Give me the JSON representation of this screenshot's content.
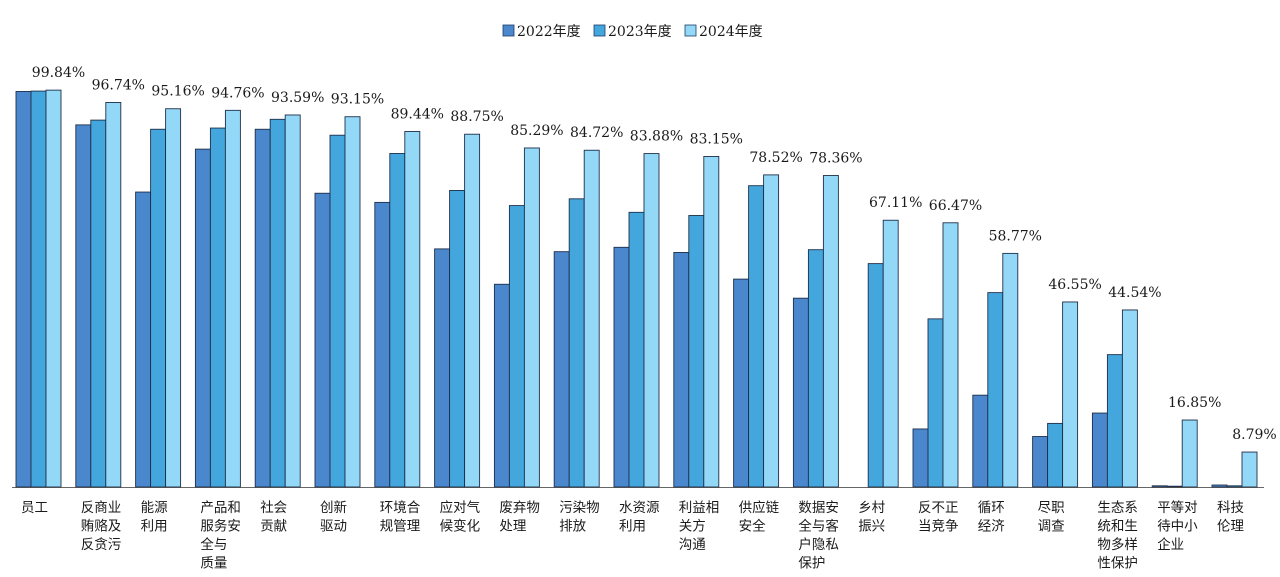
{
  "chart_data": {
    "type": "bar",
    "title": "",
    "xlabel": "",
    "ylabel": "",
    "ylim": [
      0,
      100
    ],
    "grid": false,
    "legend_placement": "top-center",
    "categories": [
      "员工",
      "反商业贿赂及反贪污",
      "能源利用",
      "产品和服务安全与质量",
      "社会贡献",
      "创新驱动",
      "环境合规管理",
      "应对气候变化",
      "废弃物处理",
      "污染物排放",
      "水资源利用",
      "利益相关方沟通",
      "供应链安全",
      "数据安全与客户隐私保护",
      "乡村振兴",
      "反不正当竞争",
      "循环经济",
      "尽职调查",
      "生态系统和生物多样性保护",
      "平等对待中小企业",
      "科技伦理"
    ],
    "category_lines": [
      [
        "员工"
      ],
      [
        "反商业",
        "贿赂及",
        "反贪污"
      ],
      [
        "能源",
        "利用"
      ],
      [
        "产品和",
        "服务安",
        "全与",
        "质量"
      ],
      [
        "社会",
        "贡献"
      ],
      [
        "创新",
        "驱动"
      ],
      [
        "环境合",
        "规管理"
      ],
      [
        "应对气",
        "候变化"
      ],
      [
        "废弃物",
        "处理"
      ],
      [
        "污染物",
        "排放"
      ],
      [
        "水资源",
        "利用"
      ],
      [
        "利益相",
        "关方",
        "沟通"
      ],
      [
        "供应链",
        "安全"
      ],
      [
        "数据安",
        "全与客",
        "户隐私",
        "保护"
      ],
      [
        "乡村",
        "振兴"
      ],
      [
        "反不正",
        "当竞争"
      ],
      [
        "循环",
        "经济"
      ],
      [
        "尽职",
        "调查"
      ],
      [
        "生态系",
        "统和生",
        "物多样",
        "性保护"
      ],
      [
        "平等对",
        "待中小",
        "企业"
      ],
      [
        "科技",
        "伦理"
      ]
    ],
    "series": [
      {
        "name": "2022年度",
        "color": "#4a87cc",
        "values": [
          99.5,
          91.1,
          74.2,
          85.0,
          90.0,
          73.9,
          71.6,
          59.9,
          51.0,
          59.2,
          60.3,
          59.0,
          52.3,
          47.5,
          null,
          14.6,
          23.1,
          12.7,
          18.6,
          0.3,
          0.5
        ]
      },
      {
        "name": "2023年度",
        "color": "#43a7dd",
        "values": [
          99.6,
          92.3,
          90.0,
          90.3,
          92.5,
          88.5,
          83.9,
          74.6,
          70.8,
          72.5,
          69.1,
          68.3,
          75.8,
          59.7,
          56.2,
          42.3,
          48.9,
          16.0,
          33.3,
          0.2,
          0.3
        ]
      },
      {
        "name": "2024年度",
        "color": "#94d8f7",
        "values": [
          99.84,
          96.74,
          95.16,
          94.76,
          93.59,
          93.15,
          89.44,
          88.75,
          85.29,
          84.72,
          83.88,
          83.15,
          78.52,
          78.36,
          67.11,
          66.47,
          58.77,
          46.55,
          44.54,
          16.85,
          8.79
        ]
      }
    ],
    "data_labels": [
      "99.84%",
      "96.74%",
      "95.16%",
      "94.76%",
      "93.59%",
      "93.15%",
      "89.44%",
      "88.75%",
      "85.29%",
      "84.72%",
      "83.88%",
      "83.15%",
      "78.52%",
      "78.36%",
      "67.11%",
      "66.47%",
      "58.77%",
      "46.55%",
      "44.54%",
      "16.85%",
      "8.79%"
    ]
  }
}
